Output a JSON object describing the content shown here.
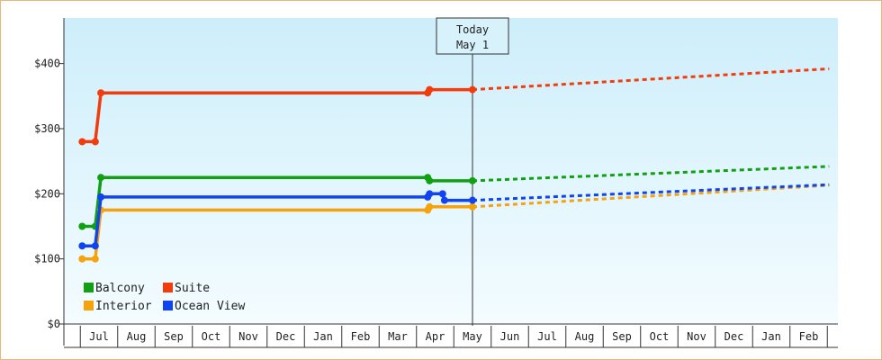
{
  "chart_data": {
    "type": "line",
    "title": "",
    "xlabel": "",
    "ylabel": "",
    "ylim": [
      0,
      470
    ],
    "y_ticks": [
      {
        "value": 0,
        "label": "$0"
      },
      {
        "value": 100,
        "label": "$100"
      },
      {
        "value": 200,
        "label": "$200"
      },
      {
        "value": 300,
        "label": "$300"
      },
      {
        "value": 400,
        "label": "$400"
      }
    ],
    "x_domain": [
      -0.45,
      19.55
    ],
    "months": [
      "Jul",
      "Aug",
      "Sep",
      "Oct",
      "Nov",
      "Dec",
      "Jan",
      "Feb",
      "Mar",
      "Apr",
      "May",
      "Jun",
      "Jul",
      "Aug",
      "Sep",
      "Oct",
      "Nov",
      "Dec",
      "Jan",
      "Feb"
    ],
    "today": {
      "label_line1": "Today",
      "label_line2": "May 1",
      "x": 10.0
    },
    "legend_position": "bottom-left",
    "series": [
      {
        "name": "Balcony",
        "color": "#11a011",
        "points": [
          [
            -0.45,
            150
          ],
          [
            -0.1,
            150
          ],
          [
            0.05,
            225
          ],
          [
            8.8,
            225
          ],
          [
            8.85,
            220
          ],
          [
            10.0,
            220
          ]
        ],
        "markers": [
          [
            -0.45,
            150
          ],
          [
            -0.1,
            150
          ],
          [
            0.05,
            225
          ],
          [
            8.8,
            225
          ],
          [
            8.85,
            220
          ],
          [
            10.0,
            220
          ]
        ],
        "projection": [
          [
            10.0,
            220
          ],
          [
            19.55,
            242
          ]
        ]
      },
      {
        "name": "Suite",
        "color": "#f23c0c",
        "points": [
          [
            -0.45,
            280
          ],
          [
            -0.1,
            280
          ],
          [
            0.05,
            355
          ],
          [
            8.8,
            355
          ],
          [
            8.85,
            360
          ],
          [
            10.0,
            360
          ]
        ],
        "markers": [
          [
            -0.45,
            280
          ],
          [
            -0.1,
            280
          ],
          [
            0.05,
            355
          ],
          [
            8.8,
            355
          ],
          [
            8.85,
            360
          ],
          [
            10.0,
            360
          ]
        ],
        "projection": [
          [
            10.0,
            360
          ],
          [
            19.55,
            392
          ]
        ]
      },
      {
        "name": "Interior",
        "color": "#f5a20c",
        "points": [
          [
            -0.45,
            100
          ],
          [
            -0.1,
            100
          ],
          [
            0.05,
            175
          ],
          [
            8.8,
            175
          ],
          [
            8.85,
            180
          ],
          [
            10.0,
            180
          ]
        ],
        "markers": [
          [
            -0.45,
            100
          ],
          [
            -0.1,
            100
          ],
          [
            0.05,
            175
          ],
          [
            8.8,
            175
          ],
          [
            8.85,
            180
          ],
          [
            10.0,
            180
          ]
        ],
        "projection": [
          [
            10.0,
            180
          ],
          [
            19.55,
            213
          ]
        ]
      },
      {
        "name": "Ocean View",
        "color": "#1044f0",
        "points": [
          [
            -0.45,
            120
          ],
          [
            -0.1,
            120
          ],
          [
            0.05,
            195
          ],
          [
            8.8,
            195
          ],
          [
            8.85,
            200
          ],
          [
            9.2,
            200
          ],
          [
            9.25,
            190
          ],
          [
            10.0,
            190
          ]
        ],
        "markers": [
          [
            -0.45,
            120
          ],
          [
            -0.1,
            120
          ],
          [
            0.05,
            195
          ],
          [
            8.8,
            195
          ],
          [
            8.85,
            200
          ],
          [
            9.2,
            200
          ],
          [
            9.25,
            190
          ],
          [
            10.0,
            190
          ]
        ],
        "projection": [
          [
            10.0,
            190
          ],
          [
            19.55,
            214
          ]
        ]
      }
    ]
  }
}
